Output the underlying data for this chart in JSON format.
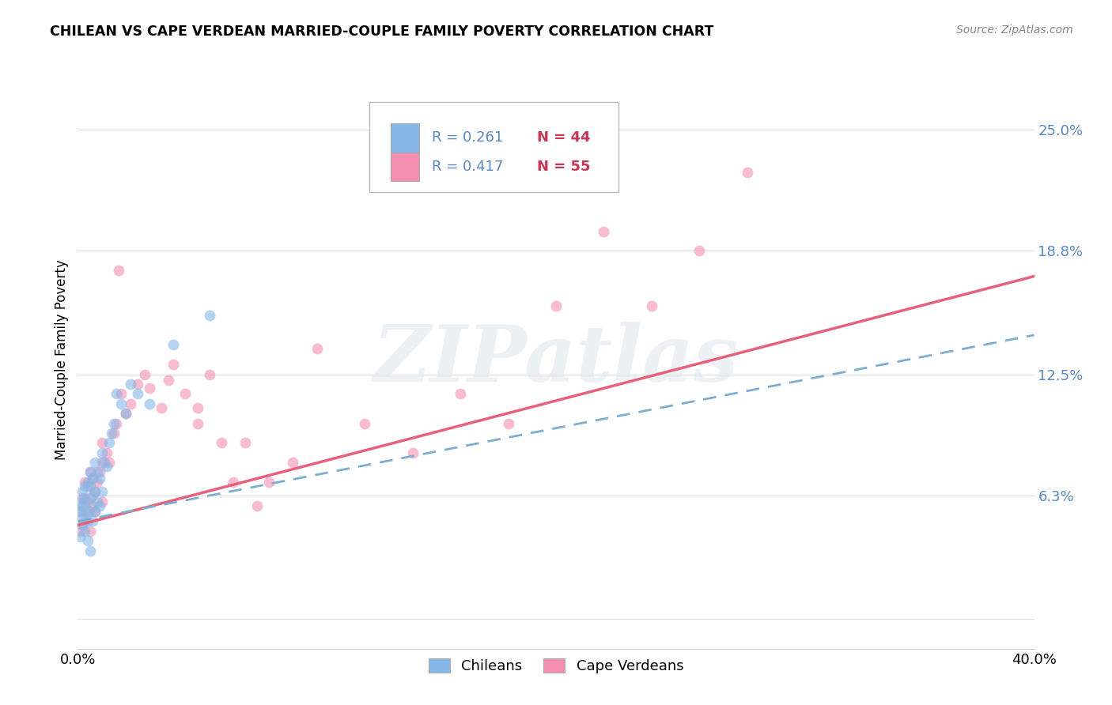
{
  "title": "CHILEAN VS CAPE VERDEAN MARRIED-COUPLE FAMILY POVERTY CORRELATION CHART",
  "source": "Source: ZipAtlas.com",
  "ylabel": "Married-Couple Family Poverty",
  "xlim": [
    0.0,
    0.4
  ],
  "ylim": [
    -0.015,
    0.28
  ],
  "ytick_labels_right": [
    "25.0%",
    "18.8%",
    "12.5%",
    "6.3%"
  ],
  "ytick_vals_right": [
    0.25,
    0.188,
    0.125,
    0.063
  ],
  "watermark": "ZIPatlas",
  "legend_r1": "R = 0.261",
  "legend_n1": "N = 44",
  "legend_r2": "R = 0.417",
  "legend_n2": "N = 55",
  "chilean_color": "#85b8e8",
  "capeverdean_color": "#f48fb1",
  "trendline_chilean_color": "#7aaed4",
  "trendline_capeverdean_color": "#e8607a",
  "background_color": "#ffffff",
  "grid_color": "#e0e0e0",
  "chilean_label": "Chileans",
  "capeverdean_label": "Cape Verdeans",
  "chilean_x": [
    0.001,
    0.001,
    0.001,
    0.002,
    0.002,
    0.002,
    0.002,
    0.003,
    0.003,
    0.003,
    0.003,
    0.004,
    0.004,
    0.004,
    0.004,
    0.005,
    0.005,
    0.005,
    0.005,
    0.006,
    0.006,
    0.006,
    0.007,
    0.007,
    0.007,
    0.008,
    0.008,
    0.009,
    0.009,
    0.01,
    0.01,
    0.011,
    0.012,
    0.013,
    0.014,
    0.015,
    0.016,
    0.018,
    0.02,
    0.022,
    0.025,
    0.03,
    0.04,
    0.055
  ],
  "chilean_y": [
    0.042,
    0.055,
    0.06,
    0.048,
    0.052,
    0.058,
    0.065,
    0.045,
    0.055,
    0.062,
    0.068,
    0.04,
    0.05,
    0.06,
    0.07,
    0.035,
    0.055,
    0.068,
    0.075,
    0.05,
    0.063,
    0.072,
    0.055,
    0.065,
    0.08,
    0.06,
    0.075,
    0.058,
    0.072,
    0.065,
    0.085,
    0.08,
    0.078,
    0.09,
    0.095,
    0.1,
    0.115,
    0.11,
    0.105,
    0.12,
    0.115,
    0.11,
    0.14,
    0.155
  ],
  "capeverdean_x": [
    0.001,
    0.001,
    0.002,
    0.002,
    0.003,
    0.003,
    0.003,
    0.004,
    0.004,
    0.005,
    0.005,
    0.005,
    0.006,
    0.006,
    0.007,
    0.007,
    0.008,
    0.009,
    0.01,
    0.01,
    0.01,
    0.012,
    0.013,
    0.015,
    0.016,
    0.017,
    0.018,
    0.02,
    0.022,
    0.025,
    0.028,
    0.03,
    0.035,
    0.038,
    0.04,
    0.045,
    0.05,
    0.055,
    0.06,
    0.065,
    0.07,
    0.08,
    0.09,
    0.1,
    0.12,
    0.14,
    0.16,
    0.18,
    0.2,
    0.22,
    0.24,
    0.26,
    0.28,
    0.05,
    0.075
  ],
  "capeverdean_y": [
    0.045,
    0.055,
    0.048,
    0.062,
    0.05,
    0.06,
    0.07,
    0.055,
    0.068,
    0.045,
    0.062,
    0.075,
    0.058,
    0.072,
    0.055,
    0.065,
    0.07,
    0.075,
    0.06,
    0.08,
    0.09,
    0.085,
    0.08,
    0.095,
    0.1,
    0.178,
    0.115,
    0.105,
    0.11,
    0.12,
    0.125,
    0.118,
    0.108,
    0.122,
    0.13,
    0.115,
    0.1,
    0.125,
    0.09,
    0.07,
    0.09,
    0.07,
    0.08,
    0.138,
    0.1,
    0.085,
    0.115,
    0.1,
    0.16,
    0.198,
    0.16,
    0.188,
    0.228,
    0.108,
    0.058
  ],
  "trendline_cv_x0": 0.0,
  "trendline_cv_y0": 0.048,
  "trendline_cv_x1": 0.4,
  "trendline_cv_y1": 0.175,
  "trendline_ch_x0": 0.0,
  "trendline_ch_y0": 0.05,
  "trendline_ch_x1": 0.4,
  "trendline_ch_y1": 0.145
}
